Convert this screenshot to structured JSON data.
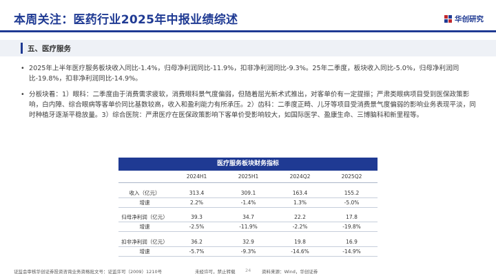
{
  "header": {
    "title": "本周关注：医药行业2025年中报业绩综述",
    "brand": "华创研究",
    "brand_color": "#1f3a93"
  },
  "section": {
    "title": "五、医疗服务"
  },
  "bullets": [
    "2025年上半年医疗服务板块收入同比-1.4%，归母净利润同比-11.9%，扣非净利润同比-9.3%。25年二季度，板块收入同比-5.0%，归母净利润同比-19.8%，扣非净利润同比-14.9%。",
    "分板块看：1）眼科：二季度由于消费需求疲软，消费眼科景气度偏弱，但随着屈光新术式推出，对客单价有一定提振；严肃类眼病项目受到医保政策影响，白内障、综合眼病等客单价同比基数较高，收入和盈利能力有所承压。2）齿科：二季度正畸、儿牙等项目受消费景气度偏弱的影响业务表现平淡，同时种植牙逐渐平稳放量。3）综合医院：严肃医疗在医保政策影响下客单价受影响较大，如国际医学、盈康生命、三博脑科和新里程等。"
  ],
  "table": {
    "title": "医疗服务板块财务指标",
    "columns": [
      "",
      "2024H1",
      "2025H1",
      "2024Q2",
      "2025Q2"
    ],
    "rows": [
      {
        "label": "收入（亿元）",
        "values": [
          "313.4",
          "309.1",
          "163.4",
          "155.2"
        ]
      },
      {
        "label": "增速",
        "values": [
          "2.2%",
          "-1.4%",
          "1.3%",
          "-5.0%"
        ]
      },
      {
        "label": "归母净利润（亿元）",
        "values": [
          "39.3",
          "34.7",
          "22.2",
          "17.8"
        ]
      },
      {
        "label": "增速",
        "values": [
          "-2.5%",
          "-11.9%",
          "-2.2%",
          "-19.8%"
        ]
      },
      {
        "label": "扣非净利润（亿元）",
        "values": [
          "36.2",
          "32.9",
          "19.8",
          "16.9"
        ]
      },
      {
        "label": "增速",
        "values": [
          "-5.7%",
          "-9.3%",
          "-14.6%",
          "-14.9%"
        ]
      }
    ]
  },
  "footer": {
    "license": "证监会审核华创证券投资咨询业务资格批文号：证监许可（2009）1210号",
    "notice": "未经许可，禁止转载",
    "page": "24",
    "source": "资料来源：Wind，华创证券"
  }
}
